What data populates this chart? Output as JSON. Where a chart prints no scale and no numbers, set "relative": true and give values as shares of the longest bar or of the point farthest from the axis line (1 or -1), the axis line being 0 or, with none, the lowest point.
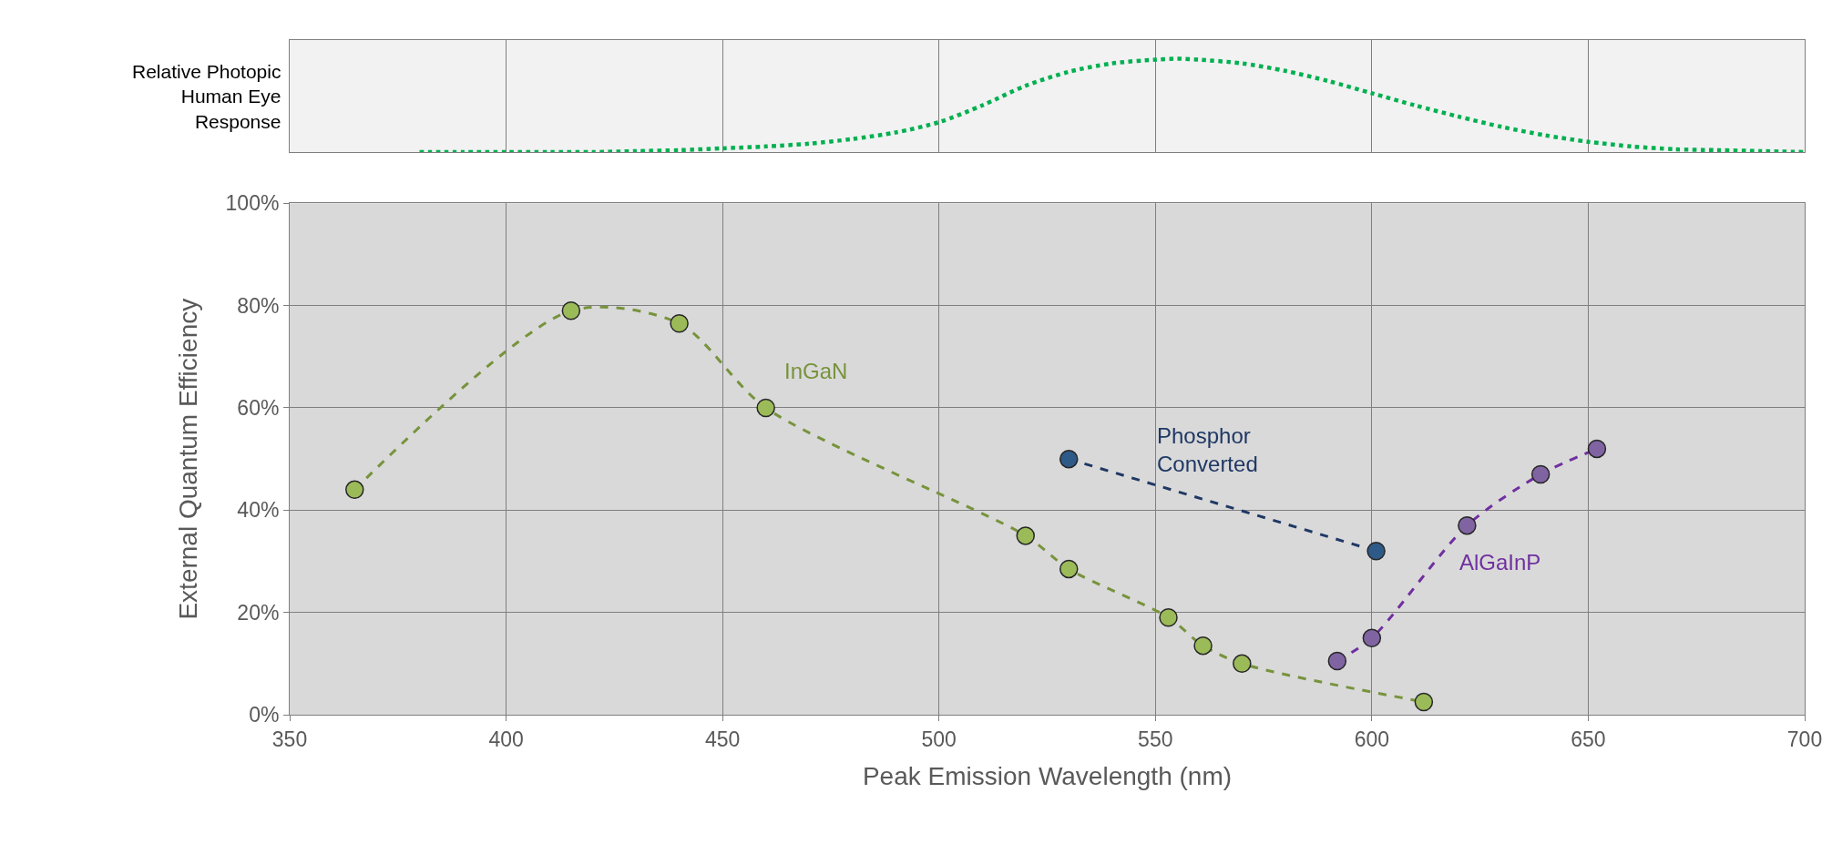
{
  "chart_data": [
    {
      "type": "line",
      "relative": true,
      "ylabel": "Relative Photopic Human Eye Response",
      "color": "#00b050",
      "line_style": "dotted",
      "grid": "x",
      "tick_labels": false,
      "xlim": [
        350,
        700
      ],
      "xticks": [
        350,
        400,
        450,
        500,
        550,
        600,
        650,
        700
      ],
      "x": [
        380,
        390,
        400,
        410,
        420,
        430,
        440,
        450,
        460,
        470,
        480,
        490,
        500,
        510,
        520,
        530,
        540,
        550,
        555,
        560,
        570,
        580,
        590,
        600,
        610,
        620,
        630,
        640,
        650,
        660,
        670,
        680,
        690,
        700
      ],
      "values": [
        0.0,
        0.0,
        0.0,
        0.0,
        0.0,
        0.01,
        0.02,
        0.04,
        0.06,
        0.09,
        0.14,
        0.21,
        0.32,
        0.5,
        0.71,
        0.86,
        0.95,
        0.99,
        1.0,
        0.99,
        0.95,
        0.87,
        0.76,
        0.63,
        0.5,
        0.38,
        0.27,
        0.18,
        0.11,
        0.06,
        0.03,
        0.02,
        0.01,
        0.0
      ]
    },
    {
      "type": "line",
      "xlabel": "Peak Emission Wavelength (nm)",
      "ylabel": "External Quantum Efficiency",
      "marker": "circle",
      "line_style": "dashed",
      "grid": true,
      "xlim": [
        350,
        700
      ],
      "xticks": [
        350,
        400,
        450,
        500,
        550,
        600,
        650,
        700
      ],
      "ylim": [
        0,
        100
      ],
      "yticks": [
        {
          "value": 0,
          "label": "0%"
        },
        {
          "value": 20,
          "label": "20%"
        },
        {
          "value": 40,
          "label": "40%"
        },
        {
          "value": 60,
          "label": "60%"
        },
        {
          "value": 80,
          "label": "80%"
        },
        {
          "value": 100,
          "label": "100%"
        }
      ],
      "series": [
        {
          "name": "InGaN",
          "color": "#77933c",
          "x": [
            365,
            415,
            440,
            460,
            520,
            530,
            553,
            561,
            570,
            612
          ],
          "values": [
            44,
            79,
            76.5,
            60,
            35,
            28.5,
            19,
            13.5,
            10,
            2.5
          ]
        },
        {
          "name": "Phosphor Converted",
          "color": "#1f3864",
          "x": [
            530,
            601
          ],
          "values": [
            50,
            32
          ]
        },
        {
          "name": "AlGaInP",
          "color": "#7030a0",
          "x": [
            592,
            600,
            622,
            639,
            652
          ],
          "values": [
            10.5,
            15,
            37,
            47,
            52
          ]
        }
      ]
    }
  ]
}
